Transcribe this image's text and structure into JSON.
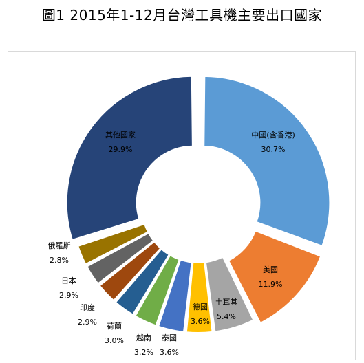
{
  "title": "圖1  2015年1-12月台灣工具機主要出口國家",
  "chart_data": {
    "type": "pie",
    "donut": true,
    "title": "圖1  2015年1-12月台灣工具機主要出口國家",
    "start_angle_deg": 0,
    "direction": "clockwise",
    "slices": [
      {
        "label": "中國(含香港)",
        "value_label": "30.7%",
        "value": 30.7,
        "color": "#5b9bd5",
        "exploded": true
      },
      {
        "label": "美國",
        "value_label": "11.9%",
        "value": 11.9,
        "color": "#ed7d31",
        "exploded": true
      },
      {
        "label": "土耳其",
        "value_label": "5.4%",
        "value": 5.4,
        "color": "#a5a5a5",
        "exploded": false
      },
      {
        "label": "德國",
        "value_label": "3.6%",
        "value": 3.6,
        "color": "#ffc000",
        "exploded": false
      },
      {
        "label": "泰國",
        "value_label": "3.6%",
        "value": 3.6,
        "color": "#4472c4",
        "exploded": false
      },
      {
        "label": "越南",
        "value_label": "3.2%",
        "value": 3.2,
        "color": "#70ad47",
        "exploded": false
      },
      {
        "label": "荷蘭",
        "value_label": "3.0%",
        "value": 3.0,
        "color": "#255e91",
        "exploded": false
      },
      {
        "label": "印度",
        "value_label": "2.9%",
        "value": 2.9,
        "color": "#9e480e",
        "exploded": false
      },
      {
        "label": "日本",
        "value_label": "2.9%",
        "value": 2.9,
        "color": "#636363",
        "exploded": false
      },
      {
        "label": "俄羅斯",
        "value_label": "2.8%",
        "value": 2.8,
        "color": "#997300",
        "exploded": false
      },
      {
        "label": "其他國家",
        "value_label": "29.9%",
        "value": 29.9,
        "color": "#264478",
        "exploded": true
      }
    ]
  }
}
